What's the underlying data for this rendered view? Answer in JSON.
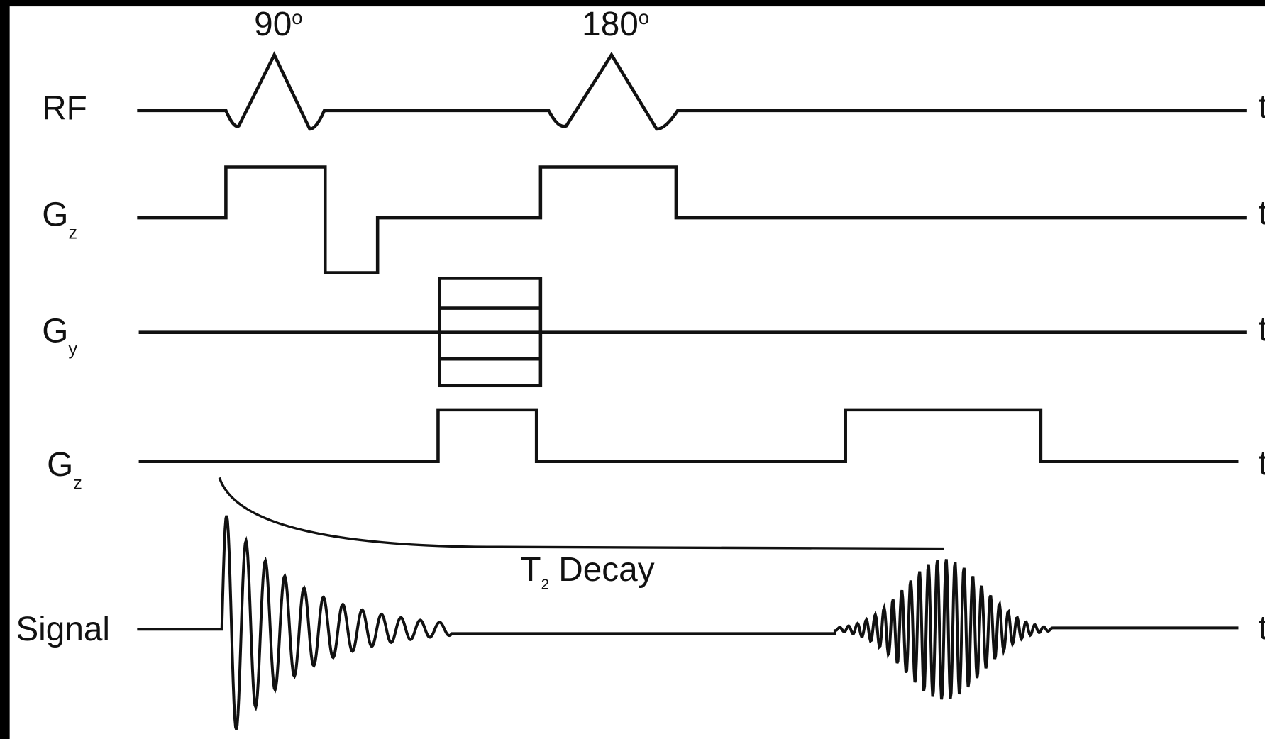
{
  "pulses": [
    {
      "text": "90",
      "sup": "o"
    },
    {
      "text": "180",
      "sup": "o"
    }
  ],
  "rows": [
    {
      "label": "RF",
      "axis": "t"
    },
    {
      "label": "G",
      "sub": "z",
      "axis": "t"
    },
    {
      "label": "G",
      "sub": "y",
      "axis": "t"
    },
    {
      "label": "G",
      "sub": "z",
      "axis": "t"
    },
    {
      "label": "Signal",
      "axis": "t"
    }
  ],
  "decay": {
    "text": "T",
    "sub": "2",
    "rest": " Decay"
  }
}
